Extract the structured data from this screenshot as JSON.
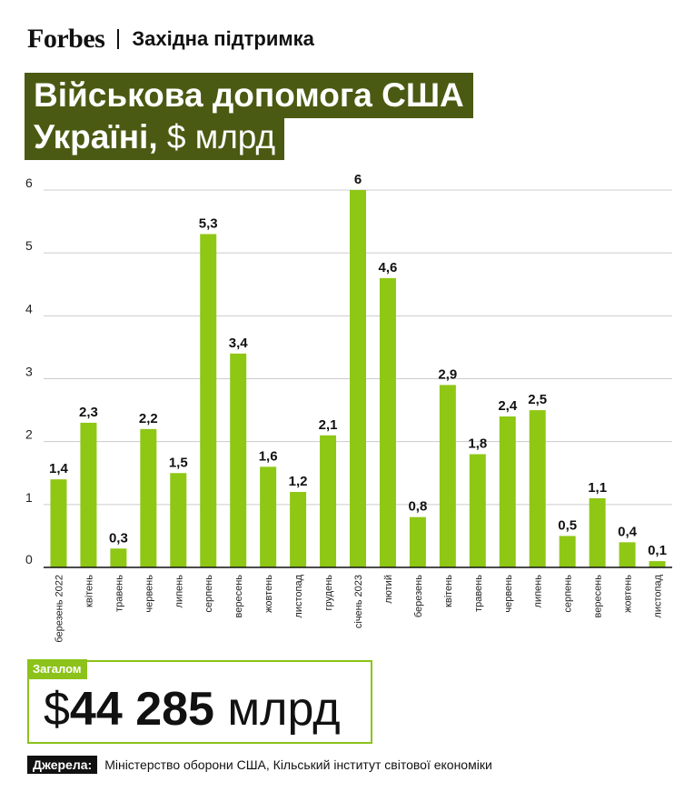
{
  "header": {
    "brand": "Forbes",
    "section": "Західна підтримка"
  },
  "title": {
    "line1": "Військова допомога США",
    "line2_main": "Україні,",
    "line2_unit": " $ млрд"
  },
  "total": {
    "tag": "Загалом",
    "currency": "$",
    "value": "44 285",
    "unit": " млрд"
  },
  "sources": {
    "label": "Джерела:",
    "text": "Міністерство оборони США, Кільський інститут світової економіки"
  },
  "colors": {
    "bar": "#8fc715",
    "title_bg": "#4a5a12",
    "accent": "#8cc21a",
    "grid": "#cccccc"
  },
  "chart_data": {
    "type": "bar",
    "categories": [
      "березень 2022",
      "квітень",
      "травень",
      "червень",
      "липень",
      "серпень",
      "вересень",
      "жовтень",
      "листопад",
      "грудень",
      "січень 2023",
      "лютий",
      "березень",
      "квітень",
      "травень",
      "червень",
      "липень",
      "серпень",
      "вересень",
      "жовтень",
      "листопад"
    ],
    "values": [
      1.4,
      2.3,
      0.3,
      2.2,
      1.5,
      5.3,
      3.4,
      1.6,
      1.2,
      2.1,
      6,
      4.6,
      0.8,
      2.9,
      1.8,
      2.4,
      2.5,
      0.5,
      1.1,
      0.4,
      0.1
    ],
    "data_labels": [
      "1,4",
      "2,3",
      "0,3",
      "2,2",
      "1,5",
      "5,3",
      "3,4",
      "1,6",
      "1,2",
      "2,1",
      "6",
      "4,6",
      "0,8",
      "2,9",
      "1,8",
      "2,4",
      "2,5",
      "0,5",
      "1,1",
      "0,4",
      "0,1"
    ],
    "yticks": [
      0,
      1,
      2,
      3,
      4,
      5,
      6
    ],
    "ylim": [
      0,
      6
    ],
    "grid": true,
    "title": "Військова допомога США Україні, $ млрд",
    "xlabel": "",
    "ylabel": ""
  }
}
